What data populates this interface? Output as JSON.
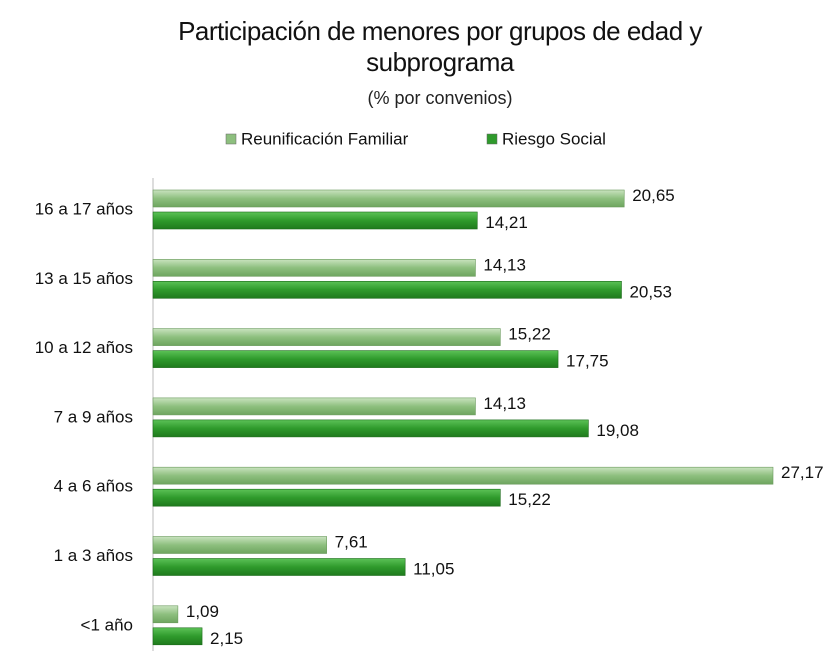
{
  "chart_data": {
    "type": "hbar",
    "title": "Participación de menores por grupos de edad y subprograma",
    "subtitle": "(% por convenios)",
    "categories": [
      "16 a 17 años",
      "13 a 15 años",
      "10 a 12 años",
      "7 a 9 años",
      "4 a 6 años",
      "1 a 3 años",
      "<1 año"
    ],
    "series": [
      {
        "name": "Reunificación Familiar",
        "color": "#8dbf7e",
        "values": [
          20.65,
          14.13,
          15.22,
          14.13,
          27.17,
          7.61,
          1.09
        ],
        "value_labels": [
          "20,65",
          "14,13",
          "15,22",
          "14,13",
          "27,17",
          "7,61",
          "1,09"
        ]
      },
      {
        "name": "Riesgo Social",
        "color": "#2f9a2c",
        "values": [
          14.21,
          20.53,
          17.75,
          19.08,
          15.22,
          11.05,
          2.15
        ],
        "value_labels": [
          "14,21",
          "20,53",
          "17,75",
          "19,08",
          "15,22",
          "11,05",
          "2,15"
        ]
      }
    ],
    "legend": "top"
  }
}
